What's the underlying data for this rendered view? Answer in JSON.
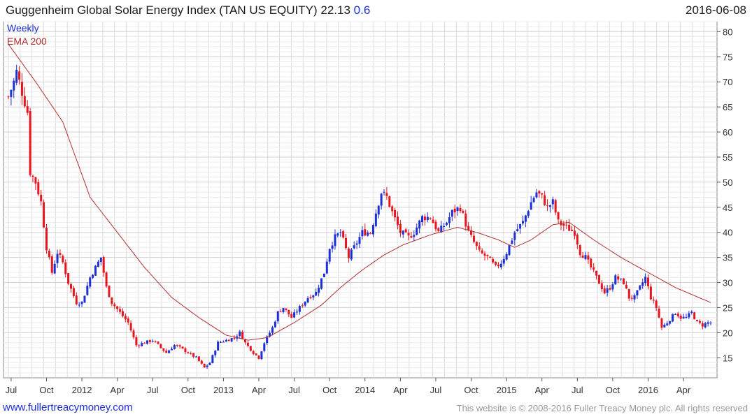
{
  "header": {
    "title": "Guggenheim Global Solar Energy Index (TAN US EQUITY) 22.13",
    "change": "0.6",
    "date": "2016-06-08"
  },
  "footer": {
    "website": "www.fullertreacymoney.com",
    "copyright": "This website is © 2008-2016 Fuller Treacy Money plc. All rights reserved"
  },
  "colors": {
    "up": "#1d2fd6",
    "down": "#e8141e",
    "ema": "#b03030",
    "grid": "#dddddd"
  },
  "chart_data": {
    "type": "candlestick",
    "legend": [
      "Weekly",
      "EMA 200"
    ],
    "legend_position": "top-left",
    "grid": true,
    "y_axis_side": "right",
    "ylim": [
      11,
      82
    ],
    "y_ticks": [
      15,
      20,
      25,
      30,
      35,
      40,
      45,
      50,
      55,
      60,
      65,
      70,
      75,
      80
    ],
    "x_tick_labels": [
      {
        "label": "Jul",
        "week": 1
      },
      {
        "label": "Oct",
        "week": 14
      },
      {
        "label": "2012",
        "week": 27
      },
      {
        "label": "Apr",
        "week": 40
      },
      {
        "label": "Jul",
        "week": 53
      },
      {
        "label": "Oct",
        "week": 66
      },
      {
        "label": "2013",
        "week": 79
      },
      {
        "label": "Apr",
        "week": 92
      },
      {
        "label": "Jul",
        "week": 105
      },
      {
        "label": "Oct",
        "week": 118
      },
      {
        "label": "2014",
        "week": 131
      },
      {
        "label": "Apr",
        "week": 144
      },
      {
        "label": "Jul",
        "week": 157
      },
      {
        "label": "Oct",
        "week": 170
      },
      {
        "label": "2015",
        "week": 183
      },
      {
        "label": "Apr",
        "week": 196
      },
      {
        "label": "Jul",
        "week": 209
      },
      {
        "label": "Oct",
        "week": 222
      },
      {
        "label": "2016",
        "week": 235
      },
      {
        "label": "Apr",
        "week": 248
      }
    ],
    "week_range": [
      0,
      258
    ],
    "price_anchors": [
      [
        0,
        67
      ],
      [
        2,
        70
      ],
      [
        3,
        72
      ],
      [
        5,
        68
      ],
      [
        7,
        64
      ],
      [
        8,
        52
      ],
      [
        10,
        50
      ],
      [
        12,
        46
      ],
      [
        14,
        37
      ],
      [
        16,
        32
      ],
      [
        18,
        36
      ],
      [
        20,
        34
      ],
      [
        22,
        30
      ],
      [
        25,
        26
      ],
      [
        27,
        26
      ],
      [
        30,
        31
      ],
      [
        32,
        33
      ],
      [
        34,
        35
      ],
      [
        36,
        29
      ],
      [
        38,
        26
      ],
      [
        41,
        24
      ],
      [
        44,
        22
      ],
      [
        47,
        17.5
      ],
      [
        50,
        18
      ],
      [
        53,
        18.5
      ],
      [
        56,
        17
      ],
      [
        58,
        16
      ],
      [
        61,
        17.5
      ],
      [
        63,
        17
      ],
      [
        66,
        16
      ],
      [
        69,
        15
      ],
      [
        72,
        13
      ],
      [
        74,
        14
      ],
      [
        77,
        18
      ],
      [
        80,
        18.5
      ],
      [
        83,
        19
      ],
      [
        85,
        20
      ],
      [
        87,
        18
      ],
      [
        90,
        16
      ],
      [
        92,
        15
      ],
      [
        94,
        18
      ],
      [
        97,
        21
      ],
      [
        99,
        24
      ],
      [
        101,
        25
      ],
      [
        104,
        23
      ],
      [
        107,
        25
      ],
      [
        110,
        27
      ],
      [
        113,
        28
      ],
      [
        116,
        32
      ],
      [
        118,
        37
      ],
      [
        120,
        39
      ],
      [
        122,
        40
      ],
      [
        125,
        35
      ],
      [
        127,
        37
      ],
      [
        130,
        40
      ],
      [
        133,
        40
      ],
      [
        135,
        44
      ],
      [
        137,
        48
      ],
      [
        139,
        47
      ],
      [
        141,
        44
      ],
      [
        144,
        40
      ],
      [
        147,
        39
      ],
      [
        149,
        40
      ],
      [
        152,
        43
      ],
      [
        155,
        43
      ],
      [
        158,
        40
      ],
      [
        161,
        42
      ],
      [
        163,
        44
      ],
      [
        166,
        45
      ],
      [
        169,
        40
      ],
      [
        171,
        38
      ],
      [
        173,
        36
      ],
      [
        176,
        35
      ],
      [
        179,
        33
      ],
      [
        181,
        34
      ],
      [
        183,
        36
      ],
      [
        186,
        40
      ],
      [
        189,
        42
      ],
      [
        192,
        46
      ],
      [
        194,
        48
      ],
      [
        196,
        47
      ],
      [
        198,
        45
      ],
      [
        200,
        46
      ],
      [
        202,
        42
      ],
      [
        205,
        41
      ],
      [
        208,
        40
      ],
      [
        210,
        36
      ],
      [
        212,
        35
      ],
      [
        215,
        32
      ],
      [
        217,
        30
      ],
      [
        219,
        28
      ],
      [
        221,
        29
      ],
      [
        223,
        31
      ],
      [
        226,
        30
      ],
      [
        228,
        27
      ],
      [
        230,
        27
      ],
      [
        232,
        29
      ],
      [
        234,
        31
      ],
      [
        236,
        27
      ],
      [
        238,
        25
      ],
      [
        240,
        21
      ],
      [
        242,
        22
      ],
      [
        245,
        24
      ],
      [
        247,
        23
      ],
      [
        249,
        23
      ],
      [
        251,
        24
      ],
      [
        253,
        22
      ],
      [
        255,
        21.5
      ],
      [
        257,
        22
      ]
    ],
    "ema_200_anchors": [
      [
        0,
        77.5
      ],
      [
        10,
        70
      ],
      [
        20,
        62
      ],
      [
        30,
        47
      ],
      [
        40,
        40
      ],
      [
        50,
        33
      ],
      [
        60,
        27
      ],
      [
        70,
        23
      ],
      [
        80,
        19.5
      ],
      [
        88,
        18.5
      ],
      [
        95,
        19
      ],
      [
        105,
        22
      ],
      [
        115,
        25.5
      ],
      [
        122,
        29
      ],
      [
        130,
        32.5
      ],
      [
        138,
        35.5
      ],
      [
        145,
        37.5
      ],
      [
        155,
        39.5
      ],
      [
        165,
        41
      ],
      [
        172,
        40
      ],
      [
        180,
        38.5
      ],
      [
        186,
        37
      ],
      [
        192,
        38.5
      ],
      [
        200,
        41.5
      ],
      [
        206,
        42
      ],
      [
        215,
        38.5
      ],
      [
        225,
        35
      ],
      [
        235,
        32
      ],
      [
        245,
        29
      ],
      [
        258,
        26
      ]
    ]
  }
}
